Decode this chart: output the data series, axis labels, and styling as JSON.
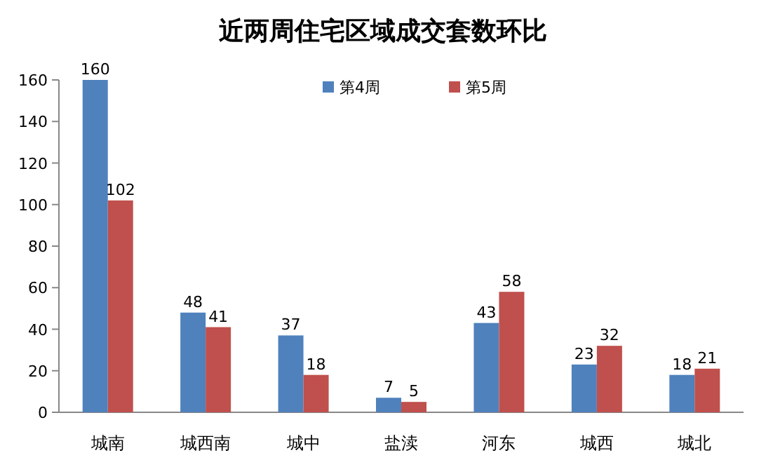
{
  "chart_data": {
    "type": "bar",
    "title": "近两周住宅区域成交套数环比",
    "categories": [
      "城南",
      "城西南",
      "城中",
      "盐渎",
      "河东",
      "城西",
      "城北"
    ],
    "series": [
      {
        "name": "第4周",
        "color": "#4f81bd",
        "values": [
          160,
          48,
          37,
          7,
          43,
          23,
          18
        ]
      },
      {
        "name": "第5周",
        "color": "#c0504d",
        "values": [
          102,
          41,
          18,
          5,
          58,
          32,
          21
        ]
      }
    ],
    "ylim": [
      0,
      160
    ],
    "yticks": [
      0,
      20,
      40,
      60,
      80,
      100,
      120,
      140,
      160
    ],
    "data_labels": true,
    "legend": "top",
    "grid": false
  }
}
